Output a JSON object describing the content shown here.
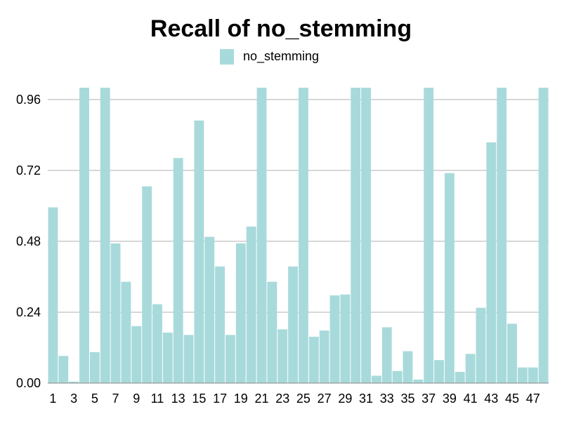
{
  "chart_data": {
    "type": "bar",
    "title": "Recall of no_stemming",
    "legend": {
      "position": "top-center",
      "entries": [
        "no_stemming"
      ]
    },
    "xlabel": "",
    "ylabel": "",
    "ylim": [
      0,
      1.0
    ],
    "y_ticks": [
      "0.00",
      "0.24",
      "0.48",
      "0.72",
      "0.96"
    ],
    "y_tick_values": [
      0,
      0.24,
      0.48,
      0.72,
      0.96
    ],
    "x_tick_labels": [
      "1",
      "3",
      "5",
      "7",
      "9",
      "11",
      "13",
      "15",
      "17",
      "19",
      "21",
      "23",
      "25",
      "27",
      "29",
      "31",
      "33",
      "35",
      "37",
      "39",
      "41",
      "43",
      "45",
      "47"
    ],
    "grid": "horizontal",
    "categories": [
      1,
      2,
      3,
      4,
      5,
      6,
      7,
      8,
      9,
      10,
      11,
      12,
      13,
      14,
      15,
      16,
      17,
      18,
      19,
      20,
      21,
      22,
      23,
      24,
      25,
      26,
      27,
      28,
      29,
      30,
      31,
      32,
      33,
      34,
      35,
      36,
      37,
      38,
      39,
      40,
      41,
      42,
      43,
      44,
      45,
      46,
      47,
      48
    ],
    "series": [
      {
        "name": "no_stemming",
        "color": "#a8dadb",
        "values": [
          0.595,
          0.092,
          0.005,
          1.0,
          0.105,
          1.0,
          0.473,
          0.343,
          0.193,
          0.666,
          0.267,
          0.171,
          0.762,
          0.163,
          0.889,
          0.495,
          0.395,
          0.163,
          0.473,
          0.53,
          1.0,
          0.343,
          0.182,
          0.395,
          1.0,
          0.157,
          0.178,
          0.297,
          0.3,
          1.0,
          1.0,
          0.025,
          0.189,
          0.041,
          0.108,
          0.012,
          1.0,
          0.078,
          0.711,
          0.038,
          0.099,
          0.255,
          0.815,
          1.0,
          0.201,
          0.053,
          0.053,
          1.0
        ]
      }
    ]
  }
}
